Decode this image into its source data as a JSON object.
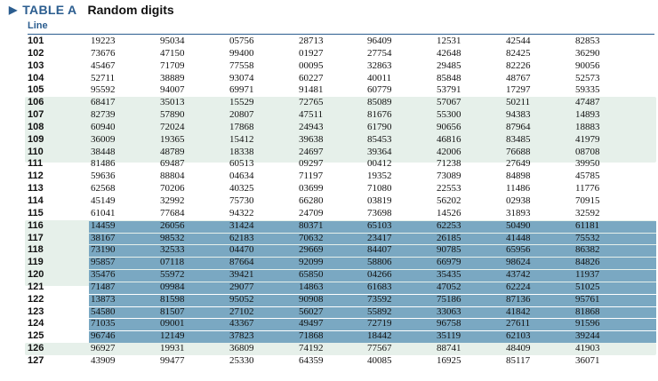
{
  "header": {
    "marker_icon": "triangle-right-icon",
    "label": "TABLE A",
    "title": "Random digits",
    "line_column_label": "Line"
  },
  "colors": {
    "accent": "#2b5d8f",
    "band_light": "#e6f0ea",
    "row_highlight": "#7aa8c2"
  },
  "rows": [
    {
      "line": "101",
      "digits": [
        "19223",
        "95034",
        "05756",
        "28713",
        "96409",
        "12531",
        "42544",
        "82853"
      ],
      "highlight": false
    },
    {
      "line": "102",
      "digits": [
        "73676",
        "47150",
        "99400",
        "01927",
        "27754",
        "42648",
        "82425",
        "36290"
      ],
      "highlight": false
    },
    {
      "line": "103",
      "digits": [
        "45467",
        "71709",
        "77558",
        "00095",
        "32863",
        "29485",
        "82226",
        "90056"
      ],
      "highlight": false
    },
    {
      "line": "104",
      "digits": [
        "52711",
        "38889",
        "93074",
        "60227",
        "40011",
        "85848",
        "48767",
        "52573"
      ],
      "highlight": false
    },
    {
      "line": "105",
      "digits": [
        "95592",
        "94007",
        "69971",
        "91481",
        "60779",
        "53791",
        "17297",
        "59335"
      ],
      "highlight": false
    },
    {
      "line": "106",
      "digits": [
        "68417",
        "35013",
        "15529",
        "72765",
        "85089",
        "57067",
        "50211",
        "47487"
      ],
      "highlight": false
    },
    {
      "line": "107",
      "digits": [
        "82739",
        "57890",
        "20807",
        "47511",
        "81676",
        "55300",
        "94383",
        "14893"
      ],
      "highlight": false
    },
    {
      "line": "108",
      "digits": [
        "60940",
        "72024",
        "17868",
        "24943",
        "61790",
        "90656",
        "87964",
        "18883"
      ],
      "highlight": false
    },
    {
      "line": "109",
      "digits": [
        "36009",
        "19365",
        "15412",
        "39638",
        "85453",
        "46816",
        "83485",
        "41979"
      ],
      "highlight": false
    },
    {
      "line": "110",
      "digits": [
        "38448",
        "48789",
        "18338",
        "24697",
        "39364",
        "42006",
        "76688",
        "08708"
      ],
      "highlight": false
    },
    {
      "line": "111",
      "digits": [
        "81486",
        "69487",
        "60513",
        "09297",
        "00412",
        "71238",
        "27649",
        "39950"
      ],
      "highlight": false
    },
    {
      "line": "112",
      "digits": [
        "59636",
        "88804",
        "04634",
        "71197",
        "19352",
        "73089",
        "84898",
        "45785"
      ],
      "highlight": false
    },
    {
      "line": "113",
      "digits": [
        "62568",
        "70206",
        "40325",
        "03699",
        "71080",
        "22553",
        "11486",
        "11776"
      ],
      "highlight": false
    },
    {
      "line": "114",
      "digits": [
        "45149",
        "32992",
        "75730",
        "66280",
        "03819",
        "56202",
        "02938",
        "70915"
      ],
      "highlight": false
    },
    {
      "line": "115",
      "digits": [
        "61041",
        "77684",
        "94322",
        "24709",
        "73698",
        "14526",
        "31893",
        "32592"
      ],
      "highlight": false
    },
    {
      "line": "116",
      "digits": [
        "14459",
        "26056",
        "31424",
        "80371",
        "65103",
        "62253",
        "50490",
        "61181"
      ],
      "highlight": true
    },
    {
      "line": "117",
      "digits": [
        "38167",
        "98532",
        "62183",
        "70632",
        "23417",
        "26185",
        "41448",
        "75532"
      ],
      "highlight": true
    },
    {
      "line": "118",
      "digits": [
        "73190",
        "32533",
        "04470",
        "29669",
        "84407",
        "90785",
        "65956",
        "86382"
      ],
      "highlight": true
    },
    {
      "line": "119",
      "digits": [
        "95857",
        "07118",
        "87664",
        "92099",
        "58806",
        "66979",
        "98624",
        "84826"
      ],
      "highlight": true
    },
    {
      "line": "120",
      "digits": [
        "35476",
        "55972",
        "39421",
        "65850",
        "04266",
        "35435",
        "43742",
        "11937"
      ],
      "highlight": true
    },
    {
      "line": "121",
      "digits": [
        "71487",
        "09984",
        "29077",
        "14863",
        "61683",
        "47052",
        "62224",
        "51025"
      ],
      "highlight": true
    },
    {
      "line": "122",
      "digits": [
        "13873",
        "81598",
        "95052",
        "90908",
        "73592",
        "75186",
        "87136",
        "95761"
      ],
      "highlight": true
    },
    {
      "line": "123",
      "digits": [
        "54580",
        "81507",
        "27102",
        "56027",
        "55892",
        "33063",
        "41842",
        "81868"
      ],
      "highlight": true
    },
    {
      "line": "124",
      "digits": [
        "71035",
        "09001",
        "43367",
        "49497",
        "72719",
        "96758",
        "27611",
        "91596"
      ],
      "highlight": true
    },
    {
      "line": "125",
      "digits": [
        "96746",
        "12149",
        "37823",
        "71868",
        "18442",
        "35119",
        "62103",
        "39244"
      ],
      "highlight": true
    },
    {
      "line": "126",
      "digits": [
        "96927",
        "19931",
        "36809",
        "74192",
        "77567",
        "88741",
        "48409",
        "41903"
      ],
      "highlight": false
    },
    {
      "line": "127",
      "digits": [
        "43909",
        "99477",
        "25330",
        "64359",
        "40085",
        "16925",
        "85117",
        "36071"
      ],
      "highlight": false
    }
  ]
}
